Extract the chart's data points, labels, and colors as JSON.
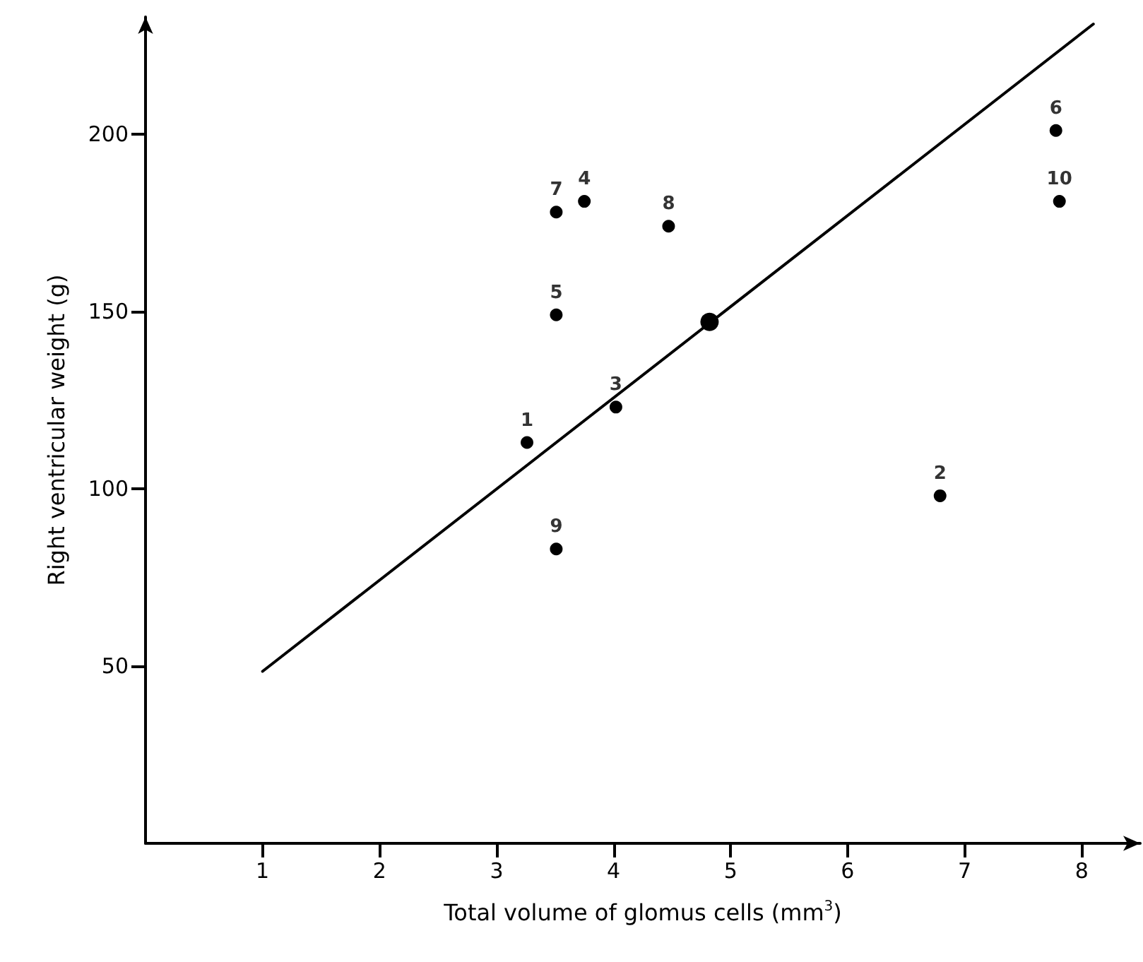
{
  "chart_data": {
    "type": "scatter",
    "xlabel": "Total volume of glomus cells (mm$^{3}$)",
    "ylabel": "Right ventricular weight (g)",
    "xlim": [
      0,
      8.5
    ],
    "xticks": [
      1,
      2,
      3,
      4,
      5,
      6,
      7,
      8
    ],
    "ylim": [
      0,
      233
    ],
    "yticks": [
      50,
      100,
      150,
      200
    ],
    "grid": false,
    "annotations": [
      {
        "text": "1",
        "x": 3.26,
        "y": 113
      },
      {
        "text": "2",
        "x": 6.79,
        "y": 98
      },
      {
        "text": "3",
        "x": 4.02,
        "y": 123
      },
      {
        "text": "4",
        "x": 3.75,
        "y": 181
      },
      {
        "text": "5",
        "x": 3.51,
        "y": 149
      },
      {
        "text": "6",
        "x": 7.78,
        "y": 201
      },
      {
        "text": "7",
        "x": 3.51,
        "y": 178
      },
      {
        "text": "8",
        "x": 4.47,
        "y": 174
      },
      {
        "text": "9",
        "x": 3.51,
        "y": 83
      },
      {
        "text": "10",
        "x": 7.81,
        "y": 181
      }
    ],
    "series": [
      {
        "color": "#000000",
        "marker": "circle",
        "x": [
          3.26,
          6.79,
          4.02,
          3.75,
          3.51,
          7.78,
          3.51,
          4.47,
          3.51,
          7.81
        ],
        "values": [
          113,
          98,
          123,
          181,
          149,
          201,
          178,
          174,
          83,
          181
        ]
      },
      {
        "color": "#000000",
        "marker": "circle",
        "x": [
          4.82
        ],
        "values": [
          147
        ]
      },
      {
        "type": "line",
        "color": "#000000",
        "marker": "none",
        "x": [
          1,
          8.1
        ],
        "values": [
          48.5,
          231
        ]
      }
    ]
  }
}
